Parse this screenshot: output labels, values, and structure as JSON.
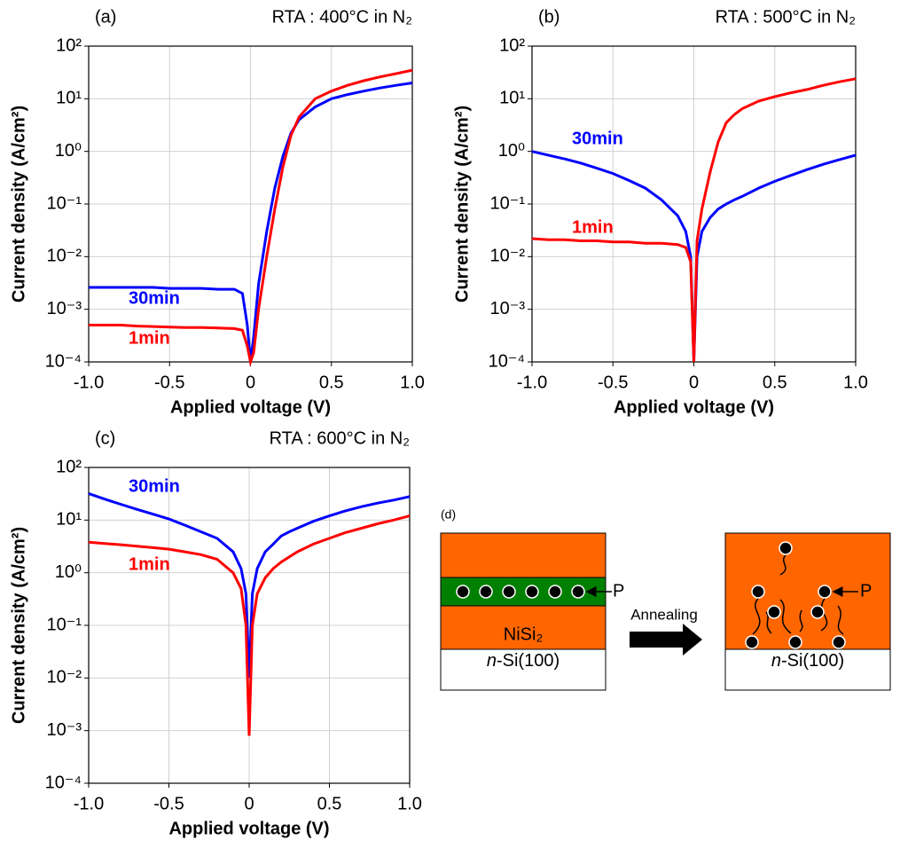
{
  "chart_data": [
    {
      "type": "line",
      "panel_label": "(a)",
      "title": "RTA : 400°C in N₂",
      "x_label": "Applied voltage (V)",
      "y_label": "Current density (A/cm²)",
      "log_y": true,
      "grid": true,
      "xlim": [
        -1,
        1
      ],
      "xticks": [
        {
          "value": -1,
          "label": "-1.0"
        },
        {
          "value": -0.5,
          "label": "-0.5"
        },
        0,
        0.5,
        {
          "value": 1,
          "label": "1.0"
        }
      ],
      "ylim": [
        0.0001,
        100
      ],
      "yticks": [
        {
          "value": 0.0001,
          "label": "10⁻⁴"
        },
        {
          "value": 0.001,
          "label": "10⁻³"
        },
        {
          "value": 0.01,
          "label": "10⁻²"
        },
        {
          "value": 0.1,
          "label": "10⁻¹"
        },
        {
          "value": 1,
          "label": "10⁰"
        },
        {
          "value": 10,
          "label": "10¹"
        },
        {
          "value": 100,
          "label": "10²"
        }
      ],
      "x": [
        -1,
        -0.9,
        -0.8,
        -0.7,
        -0.6,
        -0.5,
        -0.4,
        -0.3,
        -0.2,
        -0.1,
        -0.05,
        -0.02,
        0,
        0.02,
        0.05,
        0.1,
        0.15,
        0.2,
        0.25,
        0.3,
        0.4,
        0.5,
        0.6,
        0.7,
        0.8,
        0.9,
        1
      ],
      "series": [
        {
          "name": "30min",
          "color": "#0000ff",
          "values": [
            0.0026,
            0.0026,
            0.0026,
            0.0026,
            0.0026,
            0.0025,
            0.0025,
            0.0025,
            0.0024,
            0.0024,
            0.002,
            0.0005,
            0.0001,
            0.0003,
            0.003,
            0.03,
            0.2,
            0.8,
            2.2,
            4,
            7,
            10,
            12,
            14,
            16,
            18,
            20
          ]
        },
        {
          "name": "1min",
          "color": "#ff0000",
          "values": [
            0.0005,
            0.0005,
            0.0005,
            0.00048,
            0.00047,
            0.00046,
            0.00045,
            0.00045,
            0.00044,
            0.00043,
            0.0004,
            0.0002,
            0.0001,
            0.00015,
            0.001,
            0.01,
            0.08,
            0.5,
            2,
            4.5,
            10,
            14,
            18,
            22,
            26,
            30,
            35
          ]
        }
      ]
    },
    {
      "type": "line",
      "panel_label": "(b)",
      "title": "RTA : 500°C in N₂",
      "x_label": "Applied voltage (V)",
      "y_label": "Current density (A/cm²)",
      "log_y": true,
      "grid": true,
      "xlim": [
        -1,
        1
      ],
      "xticks": [
        {
          "value": -1,
          "label": "-1.0"
        },
        {
          "value": -0.5,
          "label": "-0.5"
        },
        0,
        0.5,
        {
          "value": 1,
          "label": "1.0"
        }
      ],
      "ylim": [
        0.0001,
        100
      ],
      "yticks": [
        {
          "value": 0.0001,
          "label": "10⁻⁴"
        },
        {
          "value": 0.001,
          "label": "10⁻³"
        },
        {
          "value": 0.01,
          "label": "10⁻²"
        },
        {
          "value": 0.1,
          "label": "10⁻¹"
        },
        {
          "value": 1,
          "label": "10⁰"
        },
        {
          "value": 10,
          "label": "10¹"
        },
        {
          "value": 100,
          "label": "10²"
        }
      ],
      "x": [
        -1,
        -0.9,
        -0.8,
        -0.7,
        -0.6,
        -0.5,
        -0.4,
        -0.3,
        -0.2,
        -0.1,
        -0.05,
        -0.02,
        0,
        0.02,
        0.05,
        0.1,
        0.15,
        0.2,
        0.25,
        0.3,
        0.4,
        0.5,
        0.6,
        0.7,
        0.8,
        0.9,
        1
      ],
      "series": [
        {
          "name": "30min",
          "color": "#0000ff",
          "values": [
            1.0,
            0.85,
            0.72,
            0.6,
            0.48,
            0.38,
            0.28,
            0.2,
            0.12,
            0.06,
            0.03,
            0.01,
            0.0001,
            0.01,
            0.03,
            0.055,
            0.08,
            0.1,
            0.12,
            0.14,
            0.2,
            0.27,
            0.35,
            0.45,
            0.57,
            0.7,
            0.85
          ]
        },
        {
          "name": "1min",
          "color": "#ff0000",
          "values": [
            0.022,
            0.021,
            0.021,
            0.02,
            0.02,
            0.019,
            0.019,
            0.018,
            0.018,
            0.017,
            0.015,
            0.008,
            0.0001,
            0.02,
            0.08,
            0.4,
            1.5,
            3.5,
            5,
            6.5,
            9,
            11,
            13,
            15,
            18,
            21,
            24
          ]
        }
      ]
    },
    {
      "type": "line",
      "panel_label": "(c)",
      "title": "RTA : 600°C in N₂",
      "x_label": "Applied voltage (V)",
      "y_label": "Current density (A/cm²)",
      "log_y": true,
      "grid": true,
      "xlim": [
        -1,
        1
      ],
      "xticks": [
        {
          "value": -1,
          "label": "-1.0"
        },
        {
          "value": -0.5,
          "label": "-0.5"
        },
        0,
        0.5,
        {
          "value": 1,
          "label": "1.0"
        }
      ],
      "ylim": [
        0.0001,
        100
      ],
      "yticks": [
        {
          "value": 0.0001,
          "label": "10⁻⁴"
        },
        {
          "value": 0.001,
          "label": "10⁻³"
        },
        {
          "value": 0.01,
          "label": "10⁻²"
        },
        {
          "value": 0.1,
          "label": "10⁻¹"
        },
        {
          "value": 1,
          "label": "10⁰"
        },
        {
          "value": 10,
          "label": "10¹"
        },
        {
          "value": 100,
          "label": "10²"
        }
      ],
      "x": [
        -1,
        -0.9,
        -0.8,
        -0.7,
        -0.6,
        -0.5,
        -0.4,
        -0.3,
        -0.2,
        -0.1,
        -0.05,
        -0.02,
        0,
        0.02,
        0.05,
        0.1,
        0.15,
        0.2,
        0.25,
        0.3,
        0.4,
        0.5,
        0.6,
        0.7,
        0.8,
        0.9,
        1
      ],
      "series": [
        {
          "name": "30min",
          "color": "#0000ff",
          "values": [
            32,
            25,
            20,
            16,
            13,
            10.5,
            8,
            6,
            4.5,
            2.5,
            1.2,
            0.4,
            0.01,
            0.4,
            1.2,
            2.5,
            3.5,
            5,
            6,
            7,
            9.5,
            12,
            15,
            18,
            21,
            24,
            28
          ]
        },
        {
          "name": "1min",
          "color": "#ff0000",
          "values": [
            3.8,
            3.6,
            3.4,
            3.2,
            3.0,
            2.8,
            2.5,
            2.2,
            1.8,
            1.0,
            0.5,
            0.1,
            0.0008,
            0.1,
            0.4,
            0.8,
            1.2,
            1.6,
            2,
            2.5,
            3.5,
            4.5,
            5.8,
            7,
            8.5,
            10,
            12
          ]
        }
      ]
    }
  ],
  "diagram": {
    "label": "(d)",
    "arrow": "Annealing",
    "before": {
      "dopant": "P",
      "layer": "NiSi₂",
      "substrate_italic": "n",
      "substrate": "-Si(100)"
    },
    "after": {
      "dopant": "P",
      "substrate_italic": "n",
      "substrate": "-Si(100)"
    }
  }
}
